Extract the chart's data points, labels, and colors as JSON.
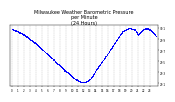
{
  "title": "Milwaukee Weather Barometric Pressure\nper Minute\n(24 Hours)",
  "title_fontsize": 3.5,
  "dot_color": "#0000ff",
  "dot_size": 0.5,
  "background_color": "#ffffff",
  "grid_color": "#999999",
  "ylim": [
    29.05,
    30.15
  ],
  "xlim": [
    -20,
    1460
  ],
  "yticks": [
    29.1,
    29.3,
    29.5,
    29.7,
    29.9,
    30.1
  ],
  "ytick_labels": [
    "29.1",
    "29.3",
    "29.5",
    "29.7",
    "29.9",
    "30.1"
  ],
  "xtick_positions": [
    0,
    60,
    120,
    180,
    240,
    300,
    360,
    420,
    480,
    540,
    600,
    660,
    720,
    780,
    840,
    900,
    960,
    1020,
    1080,
    1140,
    1200,
    1260,
    1320,
    1380
  ],
  "xtick_labels": [
    "0",
    "1",
    "2",
    "3",
    "4",
    "5",
    "6",
    "7",
    "8",
    "9",
    "10",
    "11",
    "12",
    "13",
    "14",
    "15",
    "16",
    "17",
    "18",
    "19",
    "20",
    "21",
    "22",
    "23"
  ],
  "pressure_profile": [
    [
      0,
      30.08
    ],
    [
      60,
      30.04
    ],
    [
      120,
      29.98
    ],
    [
      180,
      29.9
    ],
    [
      240,
      29.82
    ],
    [
      300,
      29.72
    ],
    [
      360,
      29.62
    ],
    [
      420,
      29.52
    ],
    [
      480,
      29.42
    ],
    [
      540,
      29.32
    ],
    [
      570,
      29.28
    ],
    [
      600,
      29.22
    ],
    [
      630,
      29.18
    ],
    [
      660,
      29.15
    ],
    [
      690,
      29.13
    ],
    [
      720,
      29.12
    ],
    [
      750,
      29.14
    ],
    [
      780,
      29.18
    ],
    [
      810,
      29.25
    ],
    [
      840,
      29.35
    ],
    [
      900,
      29.5
    ],
    [
      960,
      29.65
    ],
    [
      1020,
      29.82
    ],
    [
      1080,
      29.98
    ],
    [
      1110,
      30.05
    ],
    [
      1140,
      30.08
    ],
    [
      1170,
      30.1
    ],
    [
      1200,
      30.09
    ],
    [
      1230,
      30.07
    ],
    [
      1260,
      29.98
    ],
    [
      1290,
      30.05
    ],
    [
      1320,
      30.08
    ],
    [
      1350,
      30.1
    ],
    [
      1380,
      30.07
    ],
    [
      1410,
      30.02
    ],
    [
      1440,
      29.96
    ]
  ]
}
